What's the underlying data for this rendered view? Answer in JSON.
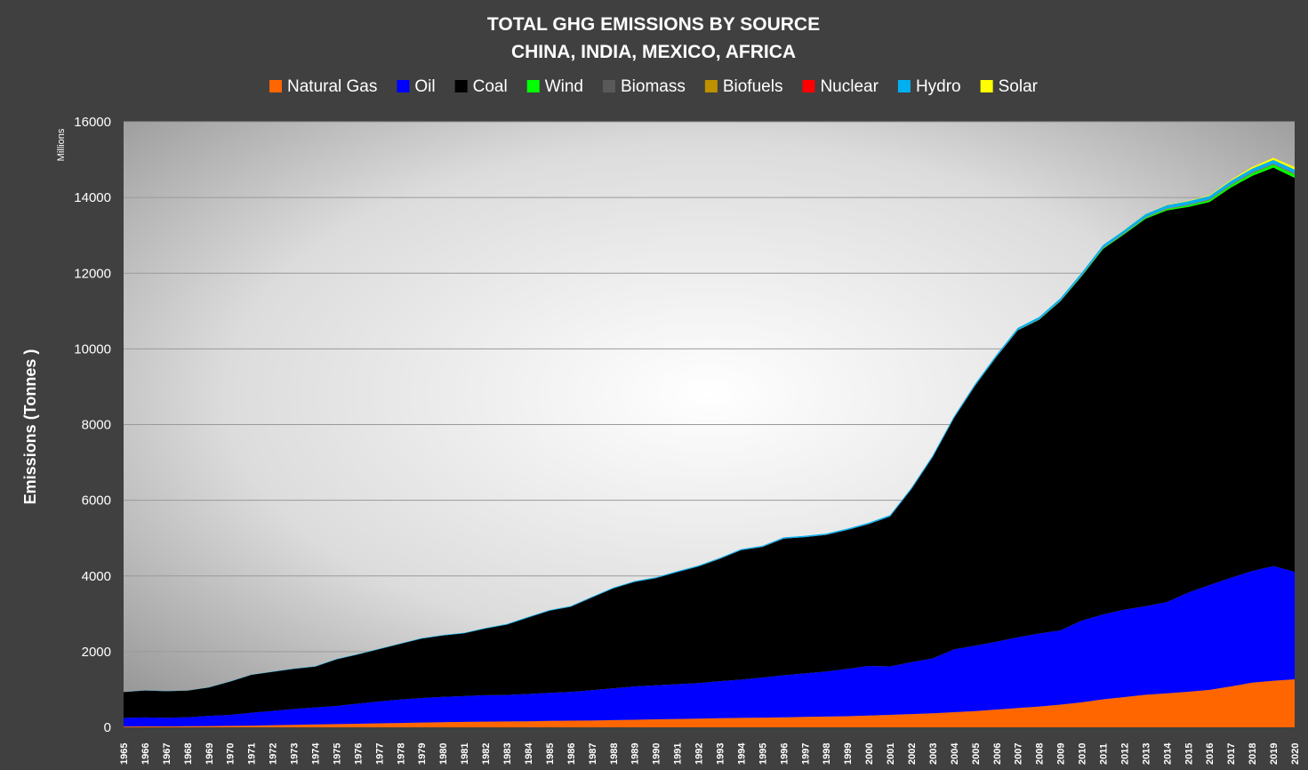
{
  "chart_data": {
    "type": "area",
    "stacked": true,
    "title": "TOTAL GHG EMISSIONS BY SOURCE",
    "subtitle": "CHINA, INDIA, MEXICO, AFRICA",
    "xlabel": "",
    "ylabel": "Emissions (Tonnes )",
    "yunit": "Millions",
    "ylim": [
      0,
      16000
    ],
    "yticks": [
      0,
      2000,
      4000,
      6000,
      8000,
      10000,
      12000,
      14000,
      16000
    ],
    "grid": true,
    "legend_position": "top",
    "x": [
      1965,
      1966,
      1967,
      1968,
      1969,
      1970,
      1971,
      1972,
      1973,
      1974,
      1975,
      1976,
      1977,
      1978,
      1979,
      1980,
      1981,
      1982,
      1983,
      1984,
      1985,
      1986,
      1987,
      1988,
      1989,
      1990,
      1991,
      1992,
      1993,
      1994,
      1995,
      1996,
      1997,
      1998,
      1999,
      2000,
      2001,
      2002,
      2003,
      2004,
      2005,
      2006,
      2007,
      2008,
      2009,
      2010,
      2011,
      2012,
      2013,
      2014,
      2015,
      2016,
      2017,
      2018,
      2019,
      2020
    ],
    "series": [
      {
        "name": "Natural Gas",
        "color": "#FF6600",
        "values": [
          20,
          22,
          24,
          28,
          32,
          38,
          45,
          55,
          65,
          75,
          85,
          95,
          105,
          115,
          125,
          135,
          145,
          150,
          155,
          160,
          170,
          175,
          180,
          190,
          200,
          210,
          220,
          230,
          240,
          250,
          255,
          265,
          275,
          285,
          295,
          310,
          330,
          350,
          370,
          400,
          430,
          470,
          510,
          550,
          600,
          660,
          740,
          800,
          860,
          900,
          940,
          990,
          1080,
          1180,
          1230,
          1270
        ]
      },
      {
        "name": "Oil",
        "color": "#0000FF",
        "values": [
          230,
          240,
          230,
          240,
          270,
          290,
          340,
          380,
          420,
          450,
          480,
          530,
          580,
          620,
          650,
          670,
          680,
          700,
          700,
          720,
          740,
          760,
          800,
          840,
          880,
          900,
          920,
          940,
          980,
          1010,
          1060,
          1110,
          1150,
          1190,
          1250,
          1310,
          1280,
          1370,
          1450,
          1660,
          1730,
          1790,
          1870,
          1930,
          1960,
          2160,
          2240,
          2310,
          2340,
          2410,
          2620,
          2770,
          2870,
          2950,
          3030,
          2840
        ]
      },
      {
        "name": "Coal",
        "color": "#000000",
        "values": [
          680,
          710,
          700,
          700,
          750,
          880,
          1000,
          1030,
          1060,
          1080,
          1230,
          1300,
          1380,
          1470,
          1570,
          1620,
          1660,
          1760,
          1860,
          2020,
          2170,
          2250,
          2450,
          2640,
          2760,
          2830,
          2960,
          3080,
          3230,
          3420,
          3450,
          3610,
          3600,
          3610,
          3670,
          3750,
          3960,
          4570,
          5320,
          6110,
          6870,
          7530,
          8110,
          8290,
          8700,
          9100,
          9660,
          9920,
          10240,
          10350,
          10190,
          10120,
          10310,
          10440,
          10530,
          10410
        ]
      },
      {
        "name": "Wind",
        "color": "#00FF00",
        "values": [
          0,
          0,
          0,
          0,
          0,
          0,
          0,
          0,
          0,
          0,
          0,
          0,
          0,
          0,
          0,
          0,
          0,
          0,
          0,
          0,
          0,
          0,
          0,
          0,
          0,
          0,
          0,
          0,
          0,
          0,
          0,
          0,
          0,
          0,
          0,
          0,
          0,
          0,
          0,
          0,
          1,
          2,
          4,
          6,
          10,
          14,
          18,
          22,
          28,
          35,
          42,
          50,
          60,
          70,
          78,
          90
        ]
      },
      {
        "name": "Biomass",
        "color": "#595959",
        "values": [
          0,
          0,
          0,
          0,
          0,
          0,
          0,
          0,
          0,
          0,
          0,
          0,
          0,
          0,
          0,
          0,
          0,
          0,
          0,
          0,
          0,
          0,
          0,
          0,
          0,
          0,
          0,
          0,
          0,
          0,
          0,
          0,
          0,
          0,
          0,
          0,
          0,
          1,
          1,
          1,
          2,
          2,
          3,
          3,
          4,
          5,
          6,
          7,
          8,
          9,
          10,
          11,
          12,
          13,
          14,
          15
        ]
      },
      {
        "name": "Biofuels",
        "color": "#BF9000",
        "values": [
          0,
          0,
          0,
          0,
          0,
          0,
          0,
          0,
          0,
          0,
          0,
          0,
          0,
          0,
          0,
          0,
          0,
          0,
          0,
          0,
          0,
          0,
          0,
          0,
          0,
          0,
          0,
          0,
          0,
          0,
          0,
          0,
          0,
          0,
          0,
          0,
          0,
          0,
          0,
          0,
          1,
          1,
          1,
          2,
          2,
          2,
          3,
          3,
          3,
          4,
          4,
          4,
          5,
          5,
          5,
          5
        ]
      },
      {
        "name": "Nuclear",
        "color": "#FF0000",
        "values": [
          0,
          0,
          0,
          0,
          0,
          0,
          0,
          0,
          0,
          0,
          0,
          0,
          0,
          0,
          0,
          0,
          0,
          0,
          0,
          0,
          0,
          1,
          1,
          1,
          1,
          1,
          1,
          1,
          1,
          1,
          1,
          1,
          1,
          1,
          1,
          1,
          2,
          2,
          2,
          2,
          2,
          2,
          2,
          2,
          2,
          3,
          3,
          3,
          3,
          4,
          4,
          5,
          5,
          6,
          7,
          7
        ]
      },
      {
        "name": "Hydro",
        "color": "#00B0F0",
        "values": [
          5,
          5,
          5,
          5,
          6,
          7,
          8,
          8,
          9,
          10,
          11,
          11,
          12,
          13,
          14,
          15,
          15,
          16,
          17,
          18,
          19,
          20,
          21,
          22,
          23,
          24,
          25,
          26,
          27,
          28,
          30,
          32,
          33,
          34,
          35,
          37,
          38,
          40,
          42,
          45,
          48,
          52,
          55,
          60,
          62,
          68,
          72,
          76,
          80,
          85,
          90,
          92,
          95,
          98,
          100,
          102
        ]
      },
      {
        "name": "Solar",
        "color": "#FFFF00",
        "values": [
          0,
          0,
          0,
          0,
          0,
          0,
          0,
          0,
          0,
          0,
          0,
          0,
          0,
          0,
          0,
          0,
          0,
          0,
          0,
          0,
          0,
          0,
          0,
          0,
          0,
          0,
          0,
          0,
          0,
          0,
          0,
          0,
          0,
          0,
          0,
          0,
          0,
          0,
          0,
          0,
          0,
          0,
          0,
          0,
          0,
          1,
          2,
          3,
          5,
          8,
          12,
          18,
          28,
          42,
          55,
          65
        ]
      }
    ]
  }
}
